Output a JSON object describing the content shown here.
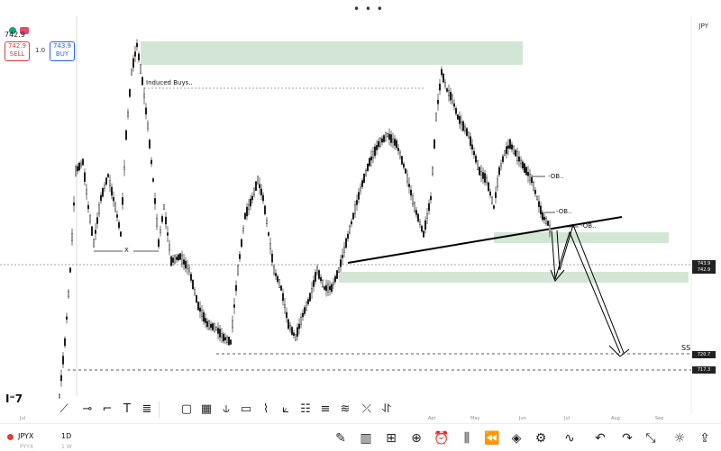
{
  "top": {
    "menu_icon": "more-dots-icon",
    "dots": "• • •"
  },
  "header": {
    "price": "742.9",
    "symbol": "JPY"
  },
  "trade": {
    "sell_price": "742.9",
    "sell_label": "SELL",
    "buy_price": "743.9",
    "buy_label": "BUY",
    "quantity": "1.0"
  },
  "chart": {
    "annotations": {
      "induced": "Induced Buys..",
      "x_mark": "X",
      "ob1": "-OB..",
      "ob2": "-OB..",
      "ob3": "-OB..",
      "ss": "SS"
    },
    "x_axis": [
      "Jul",
      "Apr",
      "May",
      "Jun",
      "Jul",
      "Aug",
      "Sep"
    ],
    "colors": {
      "zone": "#d3e6d5",
      "candles": "#111111",
      "trend": "#000000",
      "dashed": "#555555"
    },
    "logo": "TV",
    "price_tags": [
      "743.9",
      "742.9",
      "720.7",
      "717.3"
    ]
  },
  "drawing_tools": [
    {
      "icon": "trendline-icon"
    },
    {
      "icon": "horizontal-line-icon"
    },
    {
      "icon": "callout-icon"
    },
    {
      "icon": "text-icon"
    },
    {
      "icon": "parallel-channel-icon"
    },
    {
      "icon": "rectangle-icon"
    },
    {
      "icon": "grid-icon"
    },
    {
      "icon": "pitchfork-icon"
    },
    {
      "icon": "note-icon"
    },
    {
      "icon": "ruler-icon"
    },
    {
      "icon": "path-icon"
    },
    {
      "icon": "brush-icon"
    },
    {
      "icon": "fib-retracement-icon"
    },
    {
      "icon": "fib-extension-icon"
    },
    {
      "icon": "elliott-icon"
    },
    {
      "icon": "measure-icon"
    },
    {
      "icon": "curve-icon"
    }
  ],
  "bottom": {
    "ticker": "JPYX",
    "timeframe": "1D",
    "sub_ticker": "PYYX",
    "sub_tf": "1 W",
    "icons": [
      "pencil-icon",
      "chart-icon",
      "layout-icon",
      "plus-icon",
      "alarm-icon",
      "candles-icon",
      "rewind-icon",
      "layers-icon",
      "settings-icon",
      "indicators-icon",
      "undo-icon",
      "redo-icon",
      "fullscreen-icon",
      "lightbulb-icon",
      "share-icon"
    ]
  }
}
